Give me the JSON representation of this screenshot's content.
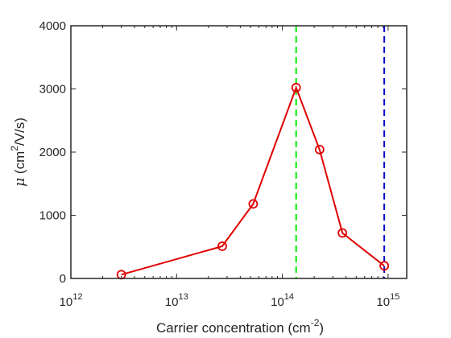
{
  "chart_data": {
    "type": "line",
    "xlabel": "Carrier concentration (cm",
    "xlabel_sup": "-2",
    "xlabel_end": ")",
    "ylabel_mu": "μ",
    "ylabel_rest": " (cm",
    "ylabel_sup": "2",
    "ylabel_end": "/V/s)",
    "xscale": "log",
    "xlim": [
      1000000000000.0,
      1500000000000000.0
    ],
    "ylim": [
      0,
      4000
    ],
    "x_ticks": [
      {
        "base": "10",
        "exp": "12",
        "value": 1000000000000.0
      },
      {
        "base": "10",
        "exp": "13",
        "value": 10000000000000.0
      },
      {
        "base": "10",
        "exp": "14",
        "value": 100000000000000.0
      },
      {
        "base": "10",
        "exp": "15",
        "value": 1000000000000000.0
      }
    ],
    "y_ticks": [
      "0",
      "1000",
      "2000",
      "3000",
      "4000"
    ],
    "series": [
      {
        "color": "#e00000",
        "marker": "circle",
        "x": [
          3000000000000.0,
          27000000000000.0,
          53000000000000.0,
          135000000000000.0,
          225000000000000.0,
          370000000000000.0,
          920000000000000.0
        ],
        "y": [
          60,
          510,
          1180,
          3020,
          2040,
          720,
          200
        ]
      }
    ],
    "vlines": [
      {
        "x": 135000000000000.0,
        "color": "#00ee00",
        "style": "dashed"
      },
      {
        "x": 920000000000000.0,
        "color": "#0000cc",
        "style": "dashed"
      }
    ],
    "grid": false,
    "box": true
  }
}
